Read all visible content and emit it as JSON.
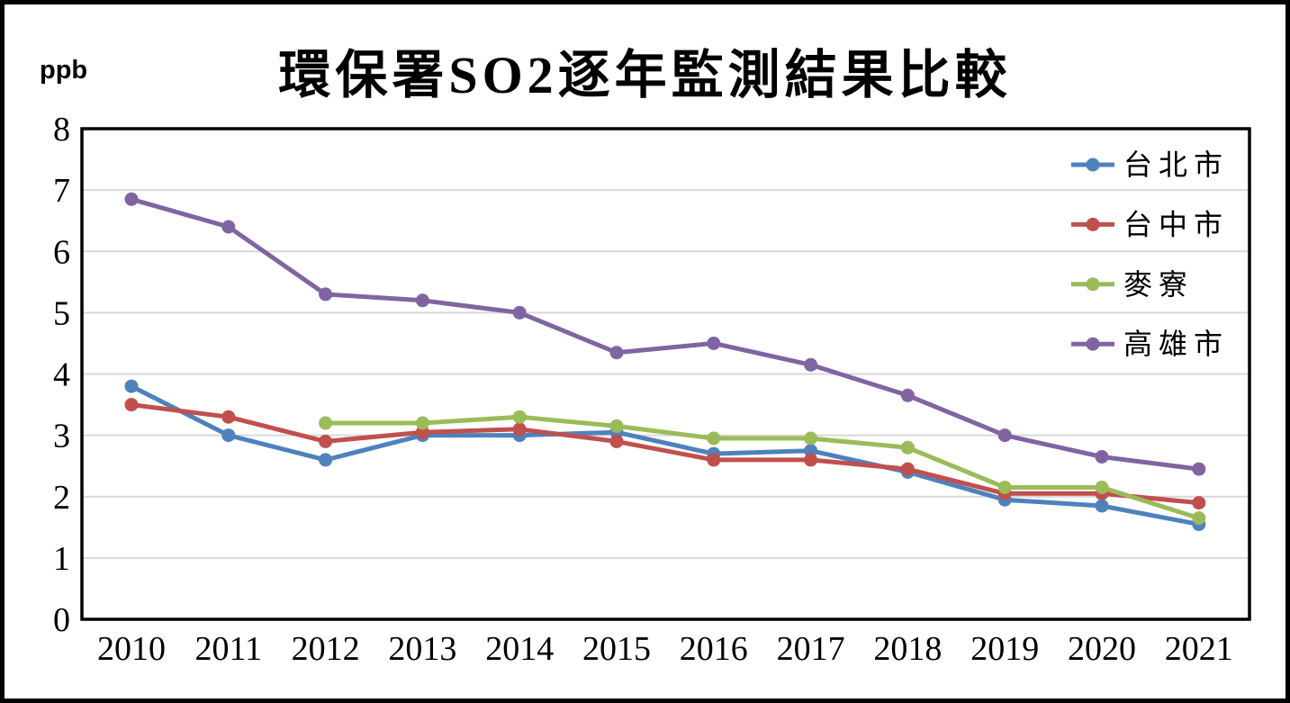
{
  "chart_data": {
    "type": "line",
    "title": "環保署SO2逐年監測結果比較",
    "ylabel": "ppb",
    "xlabel": "",
    "ylim": [
      0,
      8
    ],
    "y_ticks": [
      "0",
      "1",
      "2",
      "3",
      "4",
      "5",
      "6",
      "7",
      "8"
    ],
    "grid": "horizontal-gridlines",
    "legend_position": "inside-top-right",
    "categories": [
      "2010",
      "2011",
      "2012",
      "2013",
      "2014",
      "2015",
      "2016",
      "2017",
      "2018",
      "2019",
      "2020",
      "2021"
    ],
    "series": [
      {
        "name": "台北市",
        "slug": "taipei",
        "color": "#4F81BD",
        "values": [
          3.8,
          3.0,
          2.6,
          3.0,
          3.0,
          3.05,
          2.7,
          2.75,
          2.4,
          1.95,
          1.85,
          1.55
        ]
      },
      {
        "name": "台中市",
        "slug": "taichung",
        "color": "#C0504D",
        "values": [
          3.5,
          3.3,
          2.9,
          3.05,
          3.1,
          2.9,
          2.6,
          2.6,
          2.45,
          2.05,
          2.05,
          1.9
        ]
      },
      {
        "name": "麥寮",
        "slug": "mailiao",
        "color": "#9BBB59",
        "values": [
          null,
          null,
          3.2,
          3.2,
          3.3,
          3.15,
          2.95,
          2.95,
          2.8,
          2.15,
          2.15,
          1.65
        ]
      },
      {
        "name": "高雄市",
        "slug": "kaohsiung",
        "color": "#8064A2",
        "values": [
          6.85,
          6.4,
          5.3,
          5.2,
          5.0,
          4.35,
          4.5,
          4.15,
          3.65,
          3.0,
          2.65,
          2.45
        ]
      }
    ],
    "colors": {
      "gridline": "#D9D9D9",
      "axis": "#000000",
      "background": "#FFFFFF"
    }
  }
}
